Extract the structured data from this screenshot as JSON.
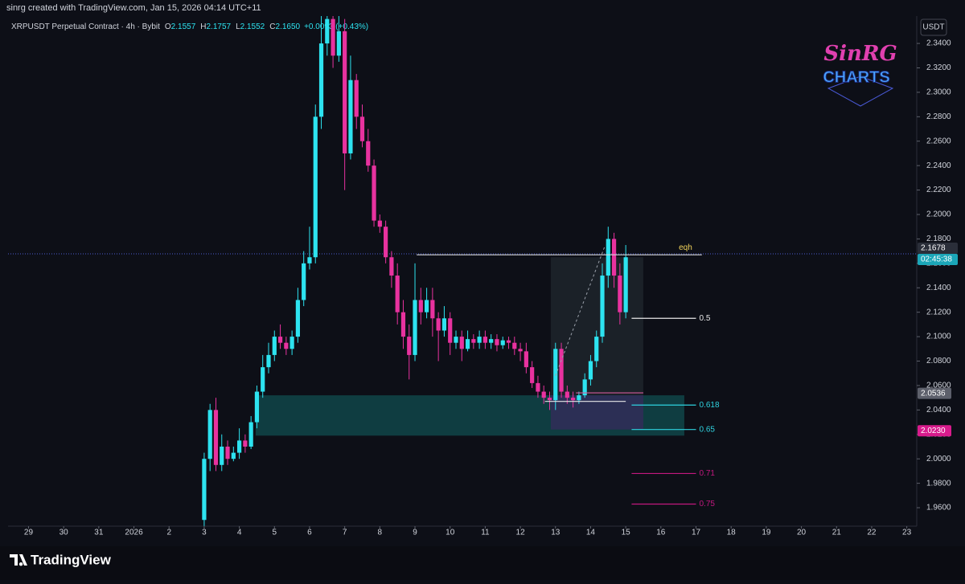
{
  "header": {
    "credit": "sinrg created with TradingView.com, Jan 15, 2026 04:14 UTC+11",
    "symbol": "XRPUSDT Perpetual Contract · 4h · Bybit",
    "ohlc": [
      {
        "key": "O",
        "value": "2.1557"
      },
      {
        "key": "H",
        "value": "2.1757"
      },
      {
        "key": "L",
        "value": "2.1552"
      },
      {
        "key": "C",
        "value": "2.1650"
      }
    ],
    "change": "+0.0093 (+0.43%)"
  },
  "watermark": {
    "line1": "SinRG",
    "line2": "CHARTS"
  },
  "footer": {
    "brand": "TradingView"
  },
  "chart_data": {
    "type": "candlestick",
    "up_color": "#2de3f0",
    "down_color": "#e8329f",
    "y_axis_label": "USDT",
    "open": [
      1.95,
      2.0,
      2.04,
      1.995,
      2.01,
      2.0,
      2.005,
      2.015,
      2.01,
      2.03,
      2.055,
      2.075,
      2.085,
      2.1,
      2.095,
      2.09,
      2.1,
      2.13,
      2.16,
      2.165,
      2.28,
      2.34,
      2.36,
      2.33,
      2.35,
      2.25,
      2.31,
      2.28,
      2.26,
      2.24,
      2.195,
      2.19,
      2.165,
      2.15,
      2.12,
      2.1,
      2.085,
      2.13,
      2.12,
      2.13,
      2.115,
      2.105,
      2.115,
      2.095,
      2.1,
      2.09,
      2.098,
      2.095,
      2.1,
      2.095,
      2.098,
      2.093,
      2.097,
      2.095,
      2.09,
      2.088,
      2.075,
      2.062,
      2.055,
      2.05,
      2.048,
      2.09,
      2.055,
      2.05,
      2.048,
      2.052,
      2.065,
      2.08,
      2.1,
      2.15,
      2.18,
      2.15,
      2.12
    ],
    "high": [
      2.005,
      2.045,
      2.05,
      2.02,
      2.015,
      2.01,
      2.025,
      2.02,
      2.035,
      2.06,
      2.085,
      2.095,
      2.105,
      2.11,
      2.1,
      2.105,
      2.14,
      2.17,
      2.19,
      2.29,
      2.37,
      2.375,
      2.37,
      2.365,
      2.36,
      2.33,
      2.315,
      2.29,
      2.27,
      2.245,
      2.2,
      2.195,
      2.17,
      2.16,
      2.13,
      2.11,
      2.16,
      2.14,
      2.14,
      2.14,
      2.12,
      2.125,
      2.12,
      2.105,
      2.105,
      2.105,
      2.102,
      2.105,
      2.105,
      2.102,
      2.102,
      2.1,
      2.1,
      2.1,
      2.095,
      2.095,
      2.08,
      2.068,
      2.06,
      2.055,
      2.095,
      2.095,
      2.06,
      2.055,
      2.055,
      2.07,
      2.085,
      2.105,
      2.16,
      2.19,
      2.185,
      2.16,
      2.175
    ],
    "low": [
      1.945,
      1.99,
      1.99,
      1.99,
      1.995,
      1.998,
      2.0,
      2.005,
      2.008,
      2.025,
      2.05,
      2.07,
      2.08,
      2.09,
      2.085,
      2.085,
      2.095,
      2.125,
      2.155,
      2.16,
      2.27,
      2.33,
      2.32,
      2.325,
      2.22,
      2.245,
      2.27,
      2.255,
      2.235,
      2.19,
      2.185,
      2.16,
      2.14,
      2.11,
      2.09,
      2.065,
      2.08,
      2.11,
      2.115,
      2.1,
      2.08,
      2.1,
      2.085,
      2.09,
      2.08,
      2.088,
      2.09,
      2.09,
      2.09,
      2.09,
      2.088,
      2.09,
      2.09,
      2.085,
      2.08,
      2.07,
      2.058,
      2.05,
      2.045,
      2.04,
      2.04,
      2.05,
      2.045,
      2.042,
      2.045,
      2.05,
      2.06,
      2.075,
      2.095,
      2.14,
      2.14,
      2.11,
      2.115
    ],
    "close": [
      2.0,
      2.04,
      1.995,
      2.01,
      2.0,
      2.005,
      2.015,
      2.01,
      2.03,
      2.055,
      2.075,
      2.085,
      2.1,
      2.095,
      2.09,
      2.1,
      2.13,
      2.16,
      2.165,
      2.28,
      2.34,
      2.36,
      2.33,
      2.35,
      2.25,
      2.31,
      2.28,
      2.26,
      2.24,
      2.195,
      2.19,
      2.165,
      2.15,
      2.12,
      2.1,
      2.085,
      2.13,
      2.12,
      2.13,
      2.115,
      2.105,
      2.115,
      2.095,
      2.1,
      2.09,
      2.098,
      2.095,
      2.1,
      2.095,
      2.098,
      2.093,
      2.097,
      2.095,
      2.09,
      2.088,
      2.075,
      2.062,
      2.055,
      2.05,
      2.048,
      2.09,
      2.055,
      2.05,
      2.048,
      2.052,
      2.065,
      2.08,
      2.1,
      2.15,
      2.18,
      2.15,
      2.12,
      2.165
    ],
    "xlim": [
      -33.5,
      121.7
    ],
    "xticks": [
      {
        "value": -30,
        "label": "29"
      },
      {
        "value": -24,
        "label": "30"
      },
      {
        "value": -18,
        "label": "31"
      },
      {
        "value": -12,
        "label": "2026"
      },
      {
        "value": -6,
        "label": "2"
      },
      {
        "value": 0,
        "label": "3"
      },
      {
        "value": 6,
        "label": "4"
      },
      {
        "value": 12,
        "label": "5"
      },
      {
        "value": 18,
        "label": "6"
      },
      {
        "value": 24,
        "label": "7"
      },
      {
        "value": 30,
        "label": "8"
      },
      {
        "value": 36,
        "label": "9"
      },
      {
        "value": 42,
        "label": "10"
      },
      {
        "value": 48,
        "label": "11"
      },
      {
        "value": 54,
        "label": "12"
      },
      {
        "value": 60,
        "label": "13"
      },
      {
        "value": 66,
        "label": "14"
      },
      {
        "value": 72,
        "label": "15"
      },
      {
        "value": 78,
        "label": "16"
      },
      {
        "value": 84,
        "label": "17"
      },
      {
        "value": 90,
        "label": "18"
      },
      {
        "value": 96,
        "label": "19"
      },
      {
        "value": 102,
        "label": "20"
      },
      {
        "value": 108,
        "label": "21"
      },
      {
        "value": 114,
        "label": "22"
      },
      {
        "value": 120,
        "label": "23"
      }
    ],
    "ylim": [
      1.9449,
      2.3624
    ],
    "yticks": [
      {
        "value": 2.34,
        "label": "2.3400"
      },
      {
        "value": 2.32,
        "label": "2.3200"
      },
      {
        "value": 2.3,
        "label": "2.3000"
      },
      {
        "value": 2.28,
        "label": "2.2800"
      },
      {
        "value": 2.26,
        "label": "2.2600"
      },
      {
        "value": 2.24,
        "label": "2.2400"
      },
      {
        "value": 2.22,
        "label": "2.2200"
      },
      {
        "value": 2.2,
        "label": "2.2000"
      },
      {
        "value": 2.18,
        "label": "2.1800"
      },
      {
        "value": 2.16,
        "label": "2.1600"
      },
      {
        "value": 2.14,
        "label": "2.1400"
      },
      {
        "value": 2.12,
        "label": "2.1200"
      },
      {
        "value": 2.1,
        "label": "2.1000"
      },
      {
        "value": 2.08,
        "label": "2.0800"
      },
      {
        "value": 2.06,
        "label": "2.0600"
      },
      {
        "value": 2.04,
        "label": "2.0400"
      },
      {
        "value": 2.02,
        "label": "2.0200"
      },
      {
        "value": 2.0,
        "label": "2.0000"
      },
      {
        "value": 1.98,
        "label": "1.9800"
      },
      {
        "value": 1.96,
        "label": "1.9600"
      }
    ],
    "current_price": {
      "value": 2.1678,
      "label": "2.1678",
      "countdown": "02:45:38",
      "color": "#4b5bd0"
    },
    "price_labels": [
      {
        "value": 2.0536,
        "label": "2.0536",
        "color": "#5d606b"
      },
      {
        "value": 2.023,
        "label": "2.0230",
        "color": "#d81b8c"
      }
    ],
    "zones": [
      {
        "x": [
          8.8,
          82
        ],
        "ylim": [
          2.019,
          2.052
        ],
        "color": "#0f3d41"
      },
      {
        "x": [
          59.2,
          75
        ],
        "ylim": [
          2.052,
          2.165
        ],
        "color": "#1b2128"
      },
      {
        "x": [
          59.2,
          75
        ],
        "ylim": [
          2.024,
          2.052
        ],
        "color": "#2c2f55"
      }
    ],
    "levels": [
      {
        "label": "eqh",
        "value": 2.167,
        "x": [
          36.3,
          85
        ],
        "color": "#d8d8d8",
        "label_color": "#f2d35b"
      },
      {
        "label": "0.5",
        "value": 2.115,
        "x": [
          73,
          84
        ],
        "color": "#e8e8e8",
        "label_color": "#e8e8e8"
      },
      {
        "label": "0.618",
        "value": 2.044,
        "x": [
          73,
          84
        ],
        "color": "#2fd3e0",
        "label_color": "#2fd3e0"
      },
      {
        "label": "0.65",
        "value": 2.024,
        "x": [
          73,
          84
        ],
        "color": "#2fd3e0",
        "label_color": "#2fd3e0"
      },
      {
        "label": "0.71",
        "value": 1.988,
        "x": [
          73,
          84
        ],
        "color": "#c2187f",
        "label_color": "#c2187f"
      },
      {
        "label": "0.75",
        "value": 1.963,
        "x": [
          73,
          84
        ],
        "color": "#c2187f",
        "label_color": "#c2187f"
      },
      {
        "value": 2.047,
        "x": [
          58.2,
          72
        ],
        "color": "#e8e8e8"
      },
      {
        "value": 2.054,
        "x": [
          63.5,
          75
        ],
        "color": "#d35a9c"
      }
    ],
    "trend_lines": [
      {
        "x": [
          60,
          68.5
        ],
        "y": [
          2.068,
          2.175
        ],
        "color": "#9aa0aa"
      }
    ]
  }
}
